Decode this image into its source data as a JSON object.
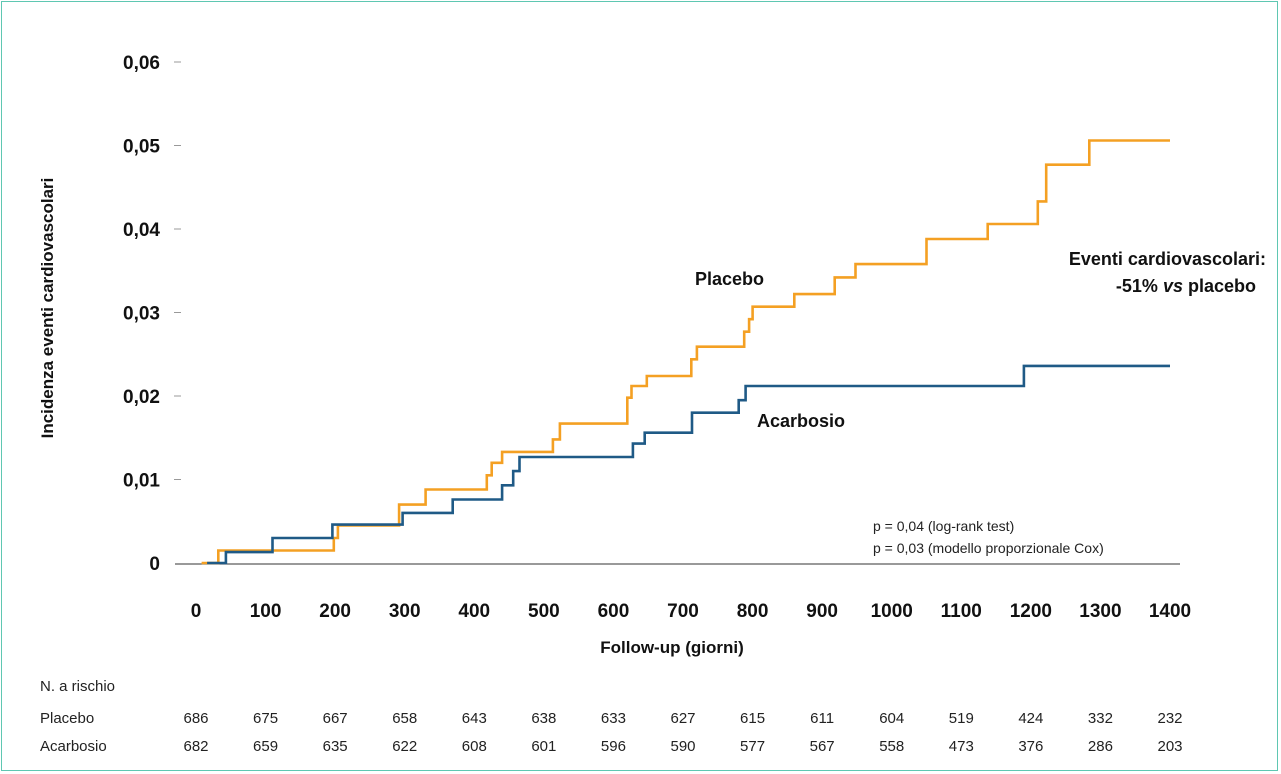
{
  "chart_data": {
    "type": "line",
    "ylabel": "Incidenza eventi cardiovascolari",
    "xlabel": "Follow-up (giorni)",
    "xlim": [
      0,
      1400
    ],
    "ylim": [
      0,
      0.06
    ],
    "xticks": [
      0,
      100,
      200,
      300,
      400,
      500,
      600,
      700,
      800,
      900,
      1000,
      1100,
      1200,
      1300,
      1400
    ],
    "xtick_labels": [
      "0",
      "100",
      "200",
      "300",
      "400",
      "500",
      "600",
      "700",
      "800",
      "900",
      "1000",
      "1100",
      "1200",
      "1300",
      "1400"
    ],
    "yticks": [
      0,
      0.01,
      0.02,
      0.03,
      0.04,
      0.05,
      0.06
    ],
    "ytick_labels": [
      "0",
      "0,01",
      "0,02",
      "0,03",
      "0,04",
      "0,05",
      "0,06"
    ],
    "grid": false,
    "series": [
      {
        "name": "Placebo",
        "color": "#f4a023",
        "step": true,
        "points": [
          [
            8,
            0.0
          ],
          [
            32,
            0.0015
          ],
          [
            198,
            0.003
          ],
          [
            204,
            0.0045
          ],
          [
            292,
            0.007
          ],
          [
            330,
            0.0088
          ],
          [
            418,
            0.0105
          ],
          [
            425,
            0.012
          ],
          [
            440,
            0.0133
          ],
          [
            513,
            0.0148
          ],
          [
            523,
            0.0167
          ],
          [
            620,
            0.0198
          ],
          [
            626,
            0.0212
          ],
          [
            648,
            0.0224
          ],
          [
            712,
            0.0244
          ],
          [
            720,
            0.0259
          ],
          [
            788,
            0.0277
          ],
          [
            795,
            0.0292
          ],
          [
            800,
            0.0307
          ],
          [
            860,
            0.0322
          ],
          [
            918,
            0.0342
          ],
          [
            948,
            0.0358
          ],
          [
            1050,
            0.0388
          ],
          [
            1138,
            0.0406
          ],
          [
            1210,
            0.0433
          ],
          [
            1222,
            0.0477
          ],
          [
            1284,
            0.0506
          ],
          [
            1400,
            0.0506
          ]
        ]
      },
      {
        "name": "Acarbosio",
        "color": "#1f5a86",
        "step": true,
        "points": [
          [
            16,
            0.0
          ],
          [
            43,
            0.0013
          ],
          [
            110,
            0.003
          ],
          [
            196,
            0.0046
          ],
          [
            297,
            0.006
          ],
          [
            369,
            0.0076
          ],
          [
            440,
            0.0093
          ],
          [
            456,
            0.011
          ],
          [
            465,
            0.0127
          ],
          [
            628,
            0.0143
          ],
          [
            645,
            0.0156
          ],
          [
            713,
            0.018
          ],
          [
            780,
            0.0195
          ],
          [
            790,
            0.0212
          ],
          [
            1190,
            0.0236
          ],
          [
            1400,
            0.0236
          ]
        ]
      }
    ],
    "annotations": {
      "effect_line1": "Eventi cardiovascolari:",
      "effect_line2_pre": "-51% ",
      "effect_line2_vs": "vs",
      "effect_line2_post": " placebo",
      "stat_line1": "p = 0,04 (log-rank test)",
      "stat_line2": "p = 0,03 (modello proporzionale Cox)"
    },
    "risk_table": {
      "title": "N. a rischio",
      "rows": [
        {
          "label": "Placebo",
          "values": [
            "686",
            "675",
            "667",
            "658",
            "643",
            "638",
            "633",
            "627",
            "615",
            "611",
            "604",
            "519",
            "424",
            "332",
            "232"
          ]
        },
        {
          "label": "Acarbosio",
          "values": [
            "682",
            "659",
            "635",
            "622",
            "608",
            "601",
            "596",
            "590",
            "577",
            "567",
            "558",
            "473",
            "376",
            "286",
            "203"
          ]
        }
      ]
    }
  }
}
